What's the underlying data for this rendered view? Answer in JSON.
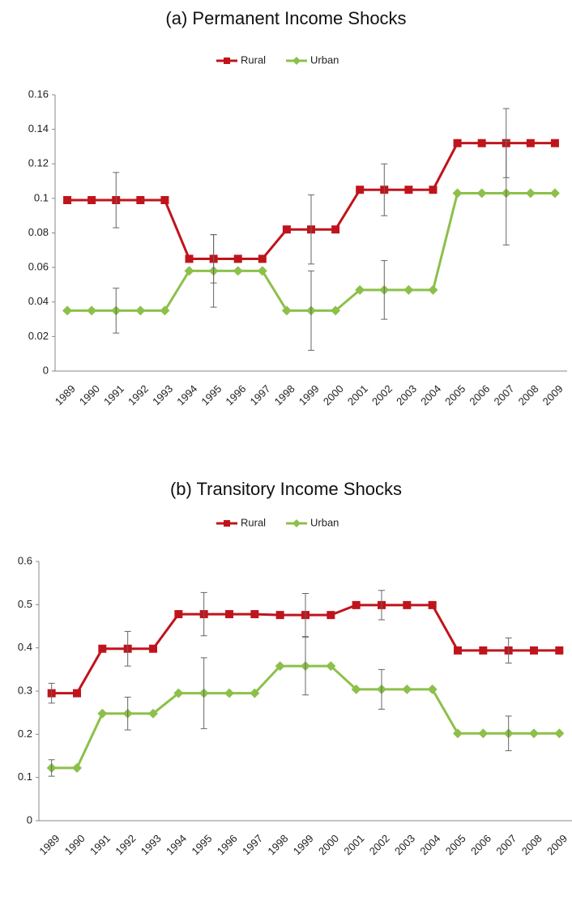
{
  "chart_data": [
    {
      "type": "line",
      "title": "(a) Permanent Income Shocks",
      "categories": [
        "1989",
        "1990",
        "1991",
        "1992",
        "1993",
        "1994",
        "1995",
        "1996",
        "1997",
        "1998",
        "1999",
        "2000",
        "2001",
        "2002",
        "2003",
        "2004",
        "2005",
        "2006",
        "2007",
        "2008",
        "2009"
      ],
      "series": [
        {
          "name": "Rural",
          "color": "#c0141c",
          "marker": "square",
          "values": [
            0.099,
            0.099,
            0.099,
            0.099,
            0.099,
            0.065,
            0.065,
            0.065,
            0.065,
            0.082,
            0.082,
            0.082,
            0.105,
            0.105,
            0.105,
            0.105,
            0.132,
            0.132,
            0.132,
            0.132,
            0.132
          ],
          "errors": [
            null,
            null,
            0.016,
            null,
            null,
            null,
            0.014,
            null,
            null,
            null,
            0.02,
            null,
            null,
            0.015,
            null,
            null,
            null,
            null,
            0.02,
            null,
            null
          ]
        },
        {
          "name": "Urban",
          "color": "#8cc04a",
          "marker": "diamond",
          "values": [
            0.035,
            0.035,
            0.035,
            0.035,
            0.035,
            0.058,
            0.058,
            0.058,
            0.058,
            0.035,
            0.035,
            0.035,
            0.047,
            0.047,
            0.047,
            0.047,
            0.103,
            0.103,
            0.103,
            0.103,
            0.103
          ],
          "errors": [
            null,
            null,
            0.013,
            null,
            null,
            null,
            0.021,
            null,
            null,
            null,
            0.023,
            null,
            null,
            0.017,
            null,
            null,
            null,
            null,
            0.03,
            null,
            null
          ]
        }
      ],
      "ylim": [
        0,
        0.16
      ],
      "yticks": [
        0,
        0.02,
        0.04,
        0.06,
        0.08,
        0.1,
        0.12,
        0.14,
        0.16
      ],
      "grid": false,
      "legend": "top"
    },
    {
      "type": "line",
      "title": "(b) Transitory Income Shocks",
      "categories": [
        "1989",
        "1990",
        "1991",
        "1992",
        "1993",
        "1994",
        "1995",
        "1996",
        "1997",
        "1998",
        "1999",
        "2000",
        "2001",
        "2002",
        "2003",
        "2004",
        "2005",
        "2006",
        "2007",
        "2008",
        "2009"
      ],
      "series": [
        {
          "name": "Rural",
          "color": "#c0141c",
          "marker": "square",
          "values": [
            0.295,
            0.295,
            0.398,
            0.398,
            0.398,
            0.478,
            0.478,
            0.478,
            0.478,
            0.476,
            0.476,
            0.476,
            0.499,
            0.499,
            0.499,
            0.499,
            0.394,
            0.394,
            0.394,
            0.394,
            0.394
          ],
          "errors": [
            0.023,
            null,
            null,
            0.04,
            null,
            null,
            0.05,
            null,
            null,
            null,
            0.05,
            null,
            null,
            0.034,
            null,
            null,
            null,
            null,
            0.029,
            null,
            null
          ]
        },
        {
          "name": "Urban",
          "color": "#8cc04a",
          "marker": "diamond",
          "values": [
            0.122,
            0.122,
            0.248,
            0.248,
            0.248,
            0.295,
            0.295,
            0.295,
            0.295,
            0.358,
            0.358,
            0.358,
            0.304,
            0.304,
            0.304,
            0.304,
            0.202,
            0.202,
            0.202,
            0.202,
            0.202
          ],
          "errors": [
            0.019,
            null,
            null,
            0.038,
            null,
            null,
            0.082,
            null,
            null,
            null,
            0.067,
            null,
            null,
            0.046,
            null,
            null,
            null,
            null,
            0.04,
            null,
            null
          ]
        }
      ],
      "ylim": [
        0,
        0.6
      ],
      "yticks": [
        0,
        0.1,
        0.2,
        0.3,
        0.4,
        0.5,
        0.6
      ],
      "grid": false,
      "legend": "top"
    }
  ]
}
